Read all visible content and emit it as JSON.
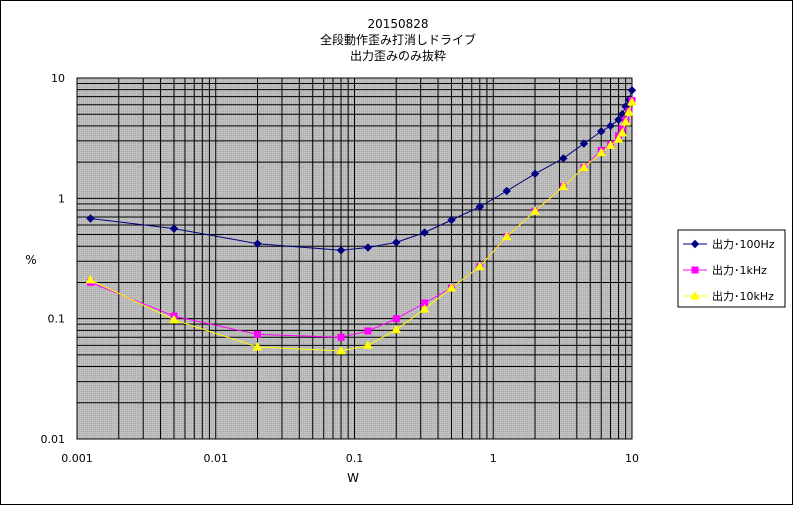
{
  "chart_data": {
    "type": "line",
    "title_lines": [
      "20150828",
      "全段動作歪み打消しドライブ",
      "出力歪みのみ抜粋"
    ],
    "xlabel": "W",
    "ylabel": "%",
    "x_scale": "log",
    "y_scale": "log",
    "xlim": [
      0.001,
      10
    ],
    "ylim": [
      0.01,
      10
    ],
    "x_ticks": [
      "0.001",
      "0.01",
      "0.1",
      "1",
      "10"
    ],
    "y_ticks": [
      "10",
      "1",
      "0.1",
      "0.01"
    ],
    "grid": true,
    "plot_background": "#c0c0c0 dotted",
    "legend_position": "right",
    "series": [
      {
        "name": "出力･100Hz",
        "color": "#000080",
        "marker": "diamond",
        "x": [
          0.00125,
          0.005,
          0.02,
          0.08,
          0.125,
          0.2,
          0.32,
          0.5,
          0.8,
          1.25,
          2.0,
          3.2,
          4.5,
          6.0,
          7.0,
          8.0,
          8.5,
          9.0,
          9.5,
          10.0
        ],
        "y": [
          0.68,
          0.56,
          0.42,
          0.37,
          0.39,
          0.43,
          0.52,
          0.66,
          0.85,
          1.15,
          1.6,
          2.15,
          2.85,
          3.6,
          4.0,
          4.5,
          5.0,
          5.8,
          6.6,
          7.9
        ]
      },
      {
        "name": "出力･1kHz",
        "color": "#ff00ff",
        "marker": "square",
        "x": [
          0.00125,
          0.005,
          0.02,
          0.08,
          0.125,
          0.2,
          0.32,
          0.5,
          0.8,
          1.25,
          2.0,
          3.2,
          4.5,
          6.0,
          7.0,
          8.0,
          8.5,
          9.0,
          9.5,
          10.0
        ],
        "y": [
          0.2,
          0.105,
          0.074,
          0.07,
          0.079,
          0.1,
          0.135,
          0.18,
          0.27,
          0.48,
          0.78,
          1.25,
          1.8,
          2.5,
          2.8,
          3.3,
          3.8,
          4.5,
          5.3,
          6.5
        ]
      },
      {
        "name": "出力･10kHz",
        "color": "#ffff00",
        "marker": "triangle",
        "x": [
          0.00125,
          0.005,
          0.02,
          0.08,
          0.125,
          0.2,
          0.32,
          0.5,
          0.8,
          1.25,
          2.0,
          3.2,
          4.5,
          6.0,
          7.0,
          8.0,
          8.5,
          9.0,
          9.5,
          10.0
        ],
        "y": [
          0.21,
          0.098,
          0.058,
          0.054,
          0.06,
          0.081,
          0.12,
          0.18,
          0.27,
          0.48,
          0.78,
          1.25,
          1.8,
          2.4,
          2.75,
          3.1,
          3.5,
          4.3,
          5.2,
          6.3
        ]
      }
    ]
  }
}
